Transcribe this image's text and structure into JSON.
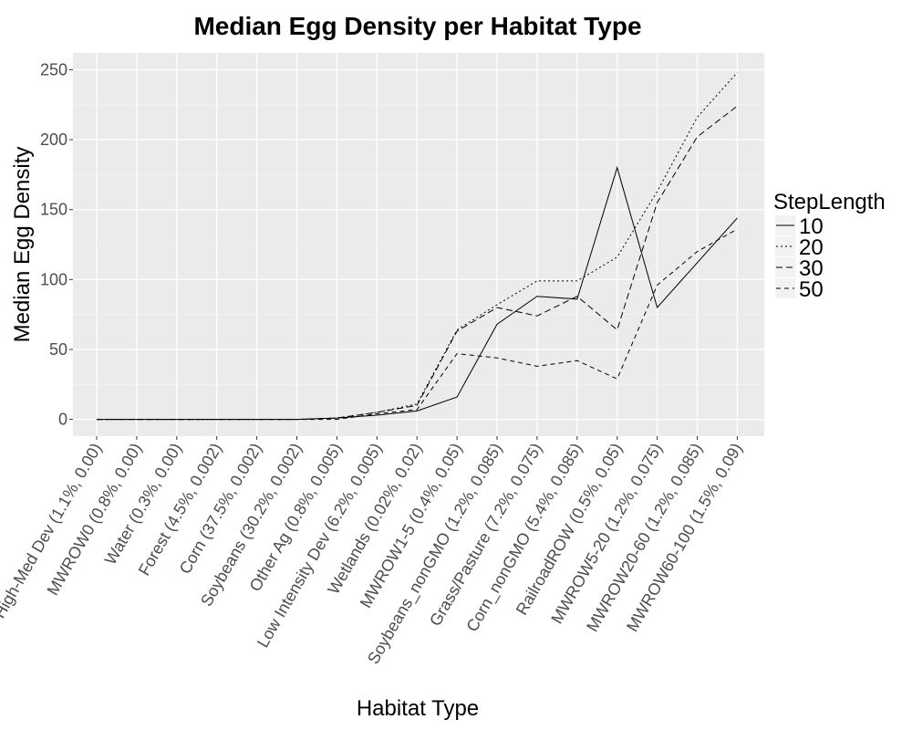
{
  "chart_data": {
    "type": "line",
    "title": "Median Egg Density per Habitat Type",
    "xlabel": "Habitat Type",
    "ylabel": "Median Egg Density",
    "ylim": [
      -12,
      262
    ],
    "yticks": [
      0,
      50,
      100,
      150,
      200,
      250
    ],
    "grid": true,
    "legend_title": "StepLength",
    "legend_position": "right",
    "categories": [
      "High-Med Dev (1.1%, 0.00)",
      "MWROW0 (0.8%, 0.00)",
      "Water (0.3%, 0.00)",
      "Forest (4.5%, 0.002)",
      "Corn (37.5%, 0.002)",
      "Soybeans (30.2%, 0.002)",
      "Other Ag (0.8%, 0.005)",
      "Low Intensity Dev (6.2%, 0.005)",
      "Wetlands (0.02%, 0.02)",
      "MWROW1-5 (0.4%, 0.05)",
      "Soybeans_nonGMO (1.2%, 0.085)",
      "Grass/Pasture (7.2%, 0.075)",
      "Corn_nonGMO (5.4%, 0.085)",
      "RailroadROW (0.5%, 0.05)",
      "MWROW5-20 (1.2%, 0.075)",
      "MWROW20-60 (1.2%, 0.085)",
      "MWROW60-100 (1.5%, 0.09)"
    ],
    "series": [
      {
        "name": "10",
        "dash": "",
        "values": [
          0,
          0,
          0,
          0,
          0,
          0,
          1,
          3,
          6,
          16,
          68,
          88,
          86,
          180,
          80,
          112,
          144
        ]
      },
      {
        "name": "20",
        "dash": "2,3",
        "values": [
          0,
          0,
          0,
          0,
          0,
          0,
          1,
          5,
          11,
          64,
          82,
          99,
          99,
          116,
          163,
          216,
          248
        ]
      },
      {
        "name": "30",
        "dash": "7,4",
        "values": [
          0,
          0,
          0,
          0,
          0,
          0,
          1,
          5,
          10,
          63,
          80,
          74,
          88,
          64,
          155,
          202,
          224
        ]
      },
      {
        "name": "50",
        "dash": "5,4",
        "values": [
          0,
          0,
          0,
          0,
          0,
          0,
          0,
          4,
          7,
          47,
          44,
          38,
          42,
          29,
          96,
          120,
          136
        ]
      }
    ]
  }
}
